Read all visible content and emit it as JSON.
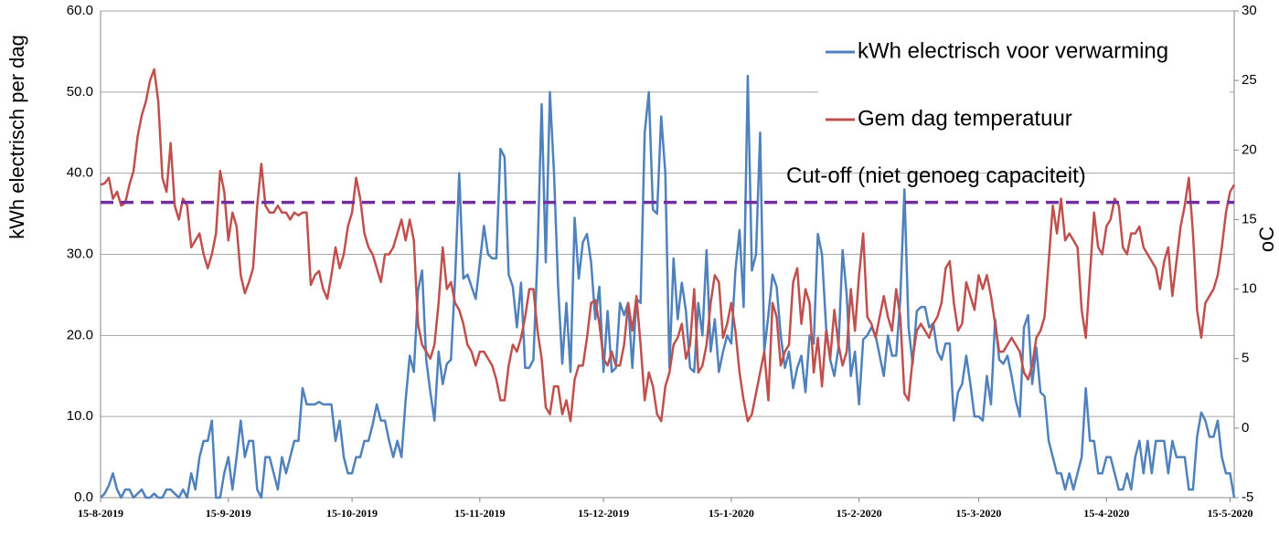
{
  "chart_data": {
    "type": "line",
    "y_label": "kWh electrisch per dag",
    "y2_label": "oC",
    "categories": [
      "15-8-2019",
      null,
      null,
      null,
      null,
      null,
      null,
      null,
      null,
      null,
      null,
      null,
      null,
      null,
      null,
      null,
      null,
      null,
      null,
      null,
      null,
      null,
      null,
      null,
      null,
      null,
      null,
      null,
      null,
      null,
      null,
      "15-9-2019",
      null,
      null,
      null,
      null,
      null,
      null,
      null,
      null,
      null,
      null,
      null,
      null,
      null,
      null,
      null,
      null,
      null,
      null,
      null,
      null,
      null,
      null,
      null,
      null,
      null,
      null,
      null,
      null,
      null,
      "15-10-2019",
      null,
      null,
      null,
      null,
      null,
      null,
      null,
      null,
      null,
      null,
      null,
      null,
      null,
      null,
      null,
      null,
      null,
      null,
      null,
      null,
      null,
      null,
      null,
      null,
      null,
      null,
      null,
      null,
      null,
      null,
      "15-11-2019",
      null,
      null,
      null,
      null,
      null,
      null,
      null,
      null,
      null,
      null,
      null,
      null,
      null,
      null,
      null,
      null,
      null,
      null,
      null,
      null,
      null,
      null,
      null,
      null,
      null,
      null,
      null,
      null,
      null,
      "15-12-2019",
      null,
      null,
      null,
      null,
      null,
      null,
      null,
      null,
      null,
      null,
      null,
      null,
      null,
      null,
      null,
      null,
      null,
      null,
      null,
      null,
      null,
      null,
      null,
      null,
      null,
      null,
      null,
      null,
      null,
      null,
      "15-1-2020",
      null,
      null,
      null,
      null,
      null,
      null,
      null,
      null,
      null,
      null,
      null,
      null,
      null,
      null,
      null,
      null,
      null,
      null,
      null,
      null,
      null,
      null,
      null,
      null,
      null,
      null,
      null,
      null,
      null,
      null,
      "15-2-2020",
      null,
      null,
      null,
      null,
      null,
      null,
      null,
      null,
      null,
      null,
      null,
      null,
      null,
      null,
      null,
      null,
      null,
      null,
      null,
      null,
      null,
      null,
      null,
      null,
      null,
      null,
      null,
      null,
      "15-3-2020",
      null,
      null,
      null,
      null,
      null,
      null,
      null,
      null,
      null,
      null,
      null,
      null,
      null,
      null,
      null,
      null,
      null,
      null,
      null,
      null,
      null,
      null,
      null,
      null,
      null,
      null,
      null,
      null,
      null,
      null,
      "15-4-2020",
      null,
      null,
      null,
      null,
      null,
      null,
      null,
      null,
      null,
      null,
      null,
      null,
      null,
      null,
      null,
      null,
      null,
      null,
      null,
      null,
      null,
      null,
      null,
      null,
      null,
      null,
      null,
      null,
      null,
      "15-5-2020",
      null
    ],
    "series": [
      {
        "name": "kWh electrisch voor verwarming",
        "color": "#4f81bd",
        "axis": "y",
        "values": [
          0,
          0.5,
          1.5,
          3,
          1,
          0,
          1,
          1,
          0,
          0.5,
          1,
          0,
          0,
          0.5,
          0,
          0,
          1,
          1,
          0.5,
          0,
          1,
          0,
          3,
          1,
          5,
          7,
          7,
          9.5,
          0,
          0,
          3,
          5,
          1,
          5,
          9.5,
          5,
          7,
          7,
          1,
          0,
          5,
          5,
          3,
          1,
          5,
          3,
          5,
          7,
          7,
          13.5,
          11.5,
          11.5,
          11.5,
          11.8,
          11.5,
          11.5,
          11.5,
          7,
          9.5,
          5,
          3,
          3,
          5,
          5,
          7,
          7,
          9,
          11.5,
          9.5,
          9.5,
          7,
          5,
          7,
          5,
          12,
          17.5,
          15.5,
          25.5,
          28,
          17,
          13,
          9.5,
          18,
          14,
          16.5,
          17,
          27,
          40,
          27,
          27.5,
          26,
          24.5,
          29,
          33.5,
          30,
          29.5,
          29.5,
          43,
          42,
          27.5,
          26,
          21,
          26.5,
          16,
          16,
          17,
          30,
          48.5,
          29,
          50,
          40,
          26,
          16.5,
          24,
          15.5,
          34.5,
          27,
          31.5,
          32.5,
          29,
          22,
          26,
          15.5,
          23,
          15.5,
          16,
          24,
          22.5,
          24,
          16,
          24.5,
          24,
          45,
          50,
          35.5,
          35,
          47,
          40,
          16,
          29.5,
          22,
          26.5,
          23,
          16,
          15.5,
          24,
          20,
          30.5,
          18,
          22,
          15.5,
          18,
          20,
          19,
          28,
          33,
          23.5,
          52,
          28,
          30,
          45,
          18,
          22.5,
          27.5,
          26,
          20,
          16,
          18,
          13.5,
          16,
          17.5,
          13,
          20,
          19,
          32.5,
          30,
          21,
          17,
          15,
          18.5,
          30.5,
          25,
          15,
          18,
          11.5,
          19.5,
          20,
          21,
          20,
          17.5,
          15,
          20,
          17.5,
          17.5,
          24.5,
          38,
          21,
          16.5,
          23,
          23.5,
          23.5,
          21,
          21.5,
          18,
          17,
          19,
          19,
          9.5,
          13,
          14,
          17.5,
          14,
          10,
          10,
          9.5,
          15,
          11.5,
          22,
          17,
          16.5,
          17.5,
          15,
          12,
          10,
          21,
          22.5,
          14,
          18.5,
          13,
          12.5,
          7,
          5,
          3,
          3,
          1,
          3,
          1,
          3,
          5,
          13.5,
          7,
          7,
          3,
          3,
          5,
          5,
          3,
          1,
          1,
          3,
          1,
          5,
          7,
          3,
          7,
          3,
          7,
          7,
          7,
          3,
          7,
          5,
          5,
          5,
          1,
          1,
          7.5,
          10.5,
          9.5,
          7.5,
          7.5,
          9.5,
          5,
          3,
          3,
          0
        ]
      },
      {
        "name": "Gem dag temperatuur",
        "color": "#c0504d",
        "axis": "y2",
        "values": [
          17.5,
          17.6,
          18,
          16.5,
          17,
          16,
          16.2,
          17.5,
          18.5,
          21,
          22.5,
          23.5,
          25,
          25.8,
          23.5,
          18,
          17,
          20.5,
          16,
          15,
          16.5,
          16,
          13,
          13.5,
          14,
          12.5,
          11.5,
          12.5,
          14,
          18.5,
          17,
          13.5,
          15.5,
          14.5,
          11,
          9.7,
          10.5,
          11.5,
          16,
          19,
          16,
          15.5,
          15.5,
          16,
          15.5,
          15.5,
          15,
          15.5,
          15.3,
          15.5,
          15.5,
          10.3,
          11,
          11.3,
          10,
          9.3,
          11,
          13,
          11.5,
          12.5,
          14.5,
          15.5,
          18,
          16.5,
          14,
          13,
          12.5,
          11.5,
          10.5,
          12.5,
          12.5,
          13,
          14,
          15,
          13.5,
          15,
          13.5,
          7.5,
          6,
          5.5,
          5,
          6,
          9,
          13,
          10,
          10.5,
          9,
          8.5,
          7.5,
          6,
          5.5,
          4.5,
          5.5,
          5.5,
          5,
          4.5,
          3.5,
          2,
          2,
          4.5,
          6,
          5.5,
          6.5,
          8,
          10,
          10,
          7,
          5,
          1.5,
          1,
          3,
          3,
          1,
          2,
          0.5,
          3.5,
          4.5,
          4.5,
          6.5,
          9,
          9.2,
          7.5,
          5,
          4.5,
          5.5,
          4.5,
          4.5,
          6,
          9,
          7,
          9.5,
          6,
          2,
          4,
          3,
          1,
          0.5,
          3,
          4,
          6,
          6.5,
          7.5,
          5,
          6,
          10,
          4,
          4.5,
          6,
          9,
          11,
          10.5,
          6.5,
          7.5,
          9,
          7,
          4,
          2,
          0.5,
          1,
          2.5,
          4,
          5.5,
          2,
          9,
          8,
          4.5,
          5.5,
          6,
          10.5,
          11.5,
          7.5,
          10,
          9,
          4,
          6.5,
          3,
          7,
          5,
          8.5,
          6,
          4.5,
          5.5,
          10,
          7,
          11,
          14,
          8,
          7.5,
          6.5,
          8,
          9.5,
          8,
          7,
          10,
          8,
          2.5,
          2,
          5,
          7,
          7.5,
          7,
          6.5,
          7.5,
          8,
          9,
          11.5,
          12,
          9,
          7,
          7.5,
          10.5,
          9.5,
          8.5,
          11,
          10,
          11,
          9.5,
          7.5,
          5.5,
          5.5,
          6,
          6.5,
          6,
          5.5,
          4,
          3.5,
          4.5,
          6.5,
          7,
          8,
          12,
          16,
          14,
          16.5,
          13.5,
          14,
          13.5,
          13,
          8.5,
          6.5,
          11,
          15.5,
          13,
          12.5,
          14.5,
          15,
          16.5,
          16,
          13,
          12.5,
          14,
          14,
          14.5,
          13,
          12.5,
          12,
          11.5,
          10,
          12,
          13,
          9.5,
          12,
          14.5,
          16,
          18,
          14,
          8.5,
          6.5,
          9,
          9.5,
          10,
          11,
          13,
          15.5,
          17,
          17.5
        ]
      }
    ],
    "ylim": [
      0,
      60
    ],
    "yticks": [
      {
        "value": 0,
        "label": "0.0"
      },
      {
        "value": 10,
        "label": "10.0"
      },
      {
        "value": 20,
        "label": "20.0"
      },
      {
        "value": 30,
        "label": "30.0"
      },
      {
        "value": 40,
        "label": "40.0"
      },
      {
        "value": 50,
        "label": "50.0"
      },
      {
        "value": 60,
        "label": "60.0"
      }
    ],
    "y2lim": [
      -5,
      30
    ],
    "y2ticks": [
      -5,
      0,
      5,
      10,
      15,
      20,
      25,
      30
    ],
    "cutoff": {
      "label": "Cut-off (niet genoeg capaciteit)",
      "value": 36.4,
      "color": "#7030a0"
    },
    "grid": true,
    "legend": "top-right"
  }
}
